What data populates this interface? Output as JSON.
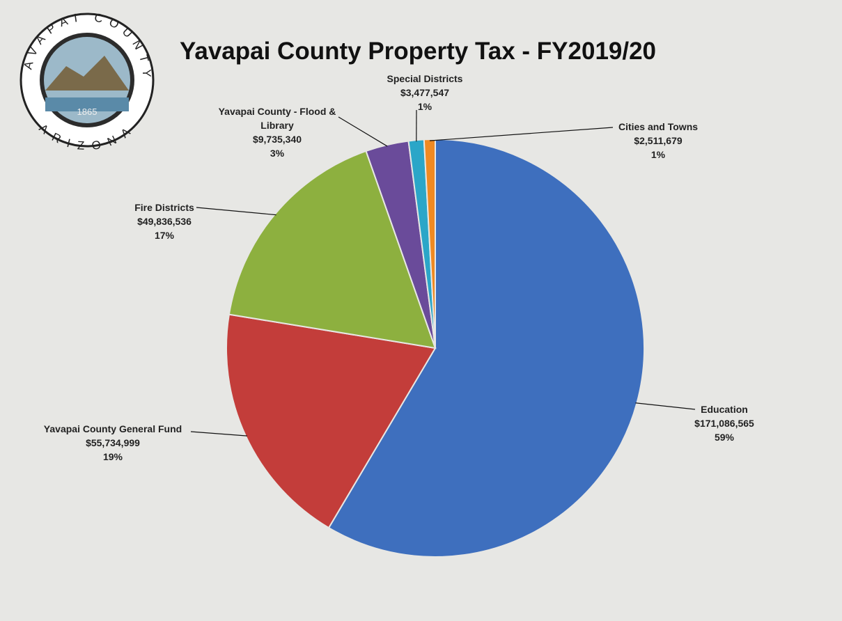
{
  "logo": {
    "top_text": "YAVAPAI COUNTY",
    "bottom_text": "ARIZONA",
    "year": 1865
  },
  "chart_data": {
    "type": "pie",
    "title": "Yavapai County Property Tax - FY2019/20",
    "categories": [
      "Education",
      "Yavapai County General Fund",
      "Fire Districts",
      "Yavapai County - Flood & Library",
      "Special Districts",
      "Cities and Towns"
    ],
    "values": [
      171086565,
      55734999,
      49836536,
      9735340,
      3477547,
      2511679
    ],
    "value_labels": [
      "$171,086,565",
      "$55,734,999",
      "$49,836,536",
      "$9,735,340",
      "$3,477,547",
      "$2,511,679"
    ],
    "percents": [
      59,
      19,
      17,
      3,
      1,
      1
    ],
    "percent_labels": [
      "59%",
      "19%",
      "17%",
      "3%",
      "1%",
      "1%"
    ],
    "colors": [
      "#3e6fbe",
      "#c33d3a",
      "#8db03f",
      "#6a4b9a",
      "#2ba6c8",
      "#f08a22"
    ]
  }
}
